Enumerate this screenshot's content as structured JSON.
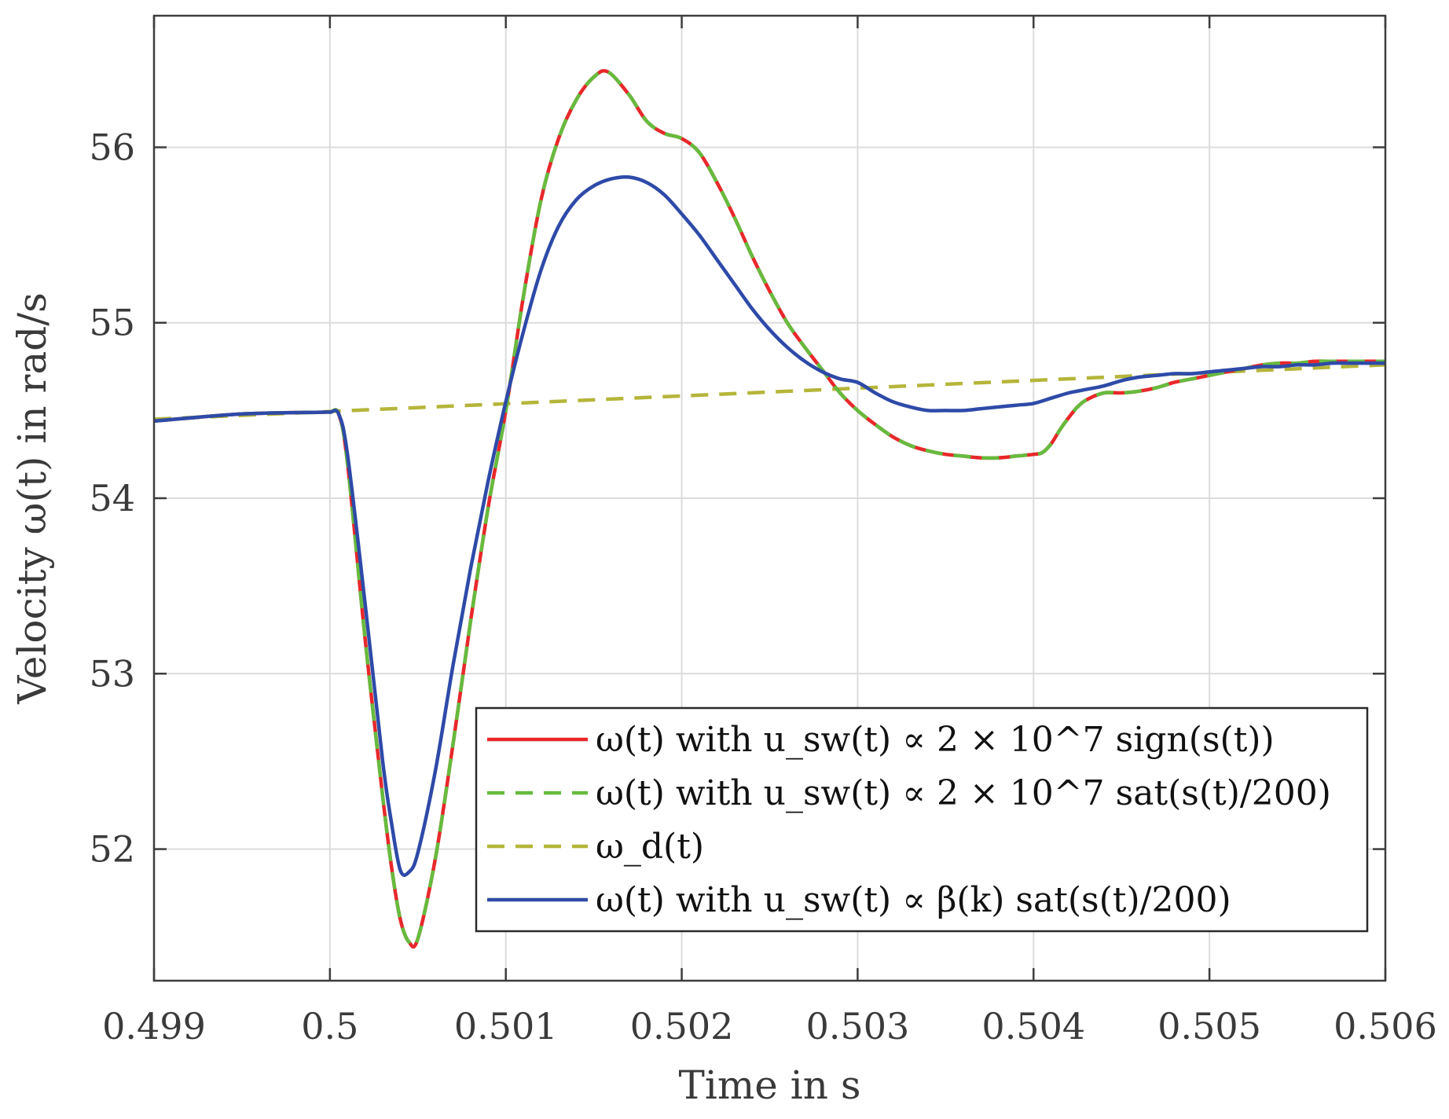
{
  "chart_data": {
    "type": "line",
    "xlabel": "Time in s",
    "ylabel": "Velocity ω(t) in rad/s",
    "xlim": [
      0.499,
      0.506
    ],
    "ylim": [
      51.25,
      56.75
    ],
    "xticks": [
      0.499,
      0.5,
      0.501,
      0.502,
      0.503,
      0.504,
      0.505,
      0.506
    ],
    "xtick_labels": [
      "0.499",
      "0.5",
      "0.501",
      "0.502",
      "0.503",
      "0.504",
      "0.505",
      "0.506"
    ],
    "yticks": [
      52,
      53,
      54,
      55,
      56
    ],
    "ytick_labels": [
      "52",
      "53",
      "54",
      "55",
      "56"
    ],
    "grid": true,
    "legend_position": "bottom-right",
    "series": [
      {
        "name": "ω(t) with u_sw(t) ∝ 2 × 10^7 sign(s(t))",
        "color": "#e8282b",
        "style": "solid",
        "x": [
          0.499,
          0.4995,
          0.49995,
          0.5,
          0.50005,
          0.5001,
          0.5002,
          0.5003,
          0.50035,
          0.5004,
          0.50045,
          0.5005,
          0.5006,
          0.5007,
          0.5008,
          0.5009,
          0.501,
          0.5011,
          0.5012,
          0.5013,
          0.5014,
          0.5015,
          0.50158,
          0.5017,
          0.5018,
          0.5019,
          0.502,
          0.5021,
          0.5022,
          0.5023,
          0.5024,
          0.5025,
          0.5026,
          0.5027,
          0.5028,
          0.5029,
          0.503,
          0.5031,
          0.5032,
          0.5033,
          0.5034,
          0.5035,
          0.5036,
          0.5037,
          0.5038,
          0.5039,
          0.504,
          0.50405,
          0.5041,
          0.50415,
          0.5042,
          0.50425,
          0.5043,
          0.5044,
          0.5045,
          0.5046,
          0.5047,
          0.5048,
          0.5049,
          0.505,
          0.5051,
          0.5052,
          0.5053,
          0.5054,
          0.5055,
          0.5056,
          0.5057,
          0.5058,
          0.5059,
          0.506
        ],
        "y": [
          54.44,
          54.48,
          54.49,
          54.49,
          54.48,
          54.2,
          53.2,
          52.3,
          51.9,
          51.6,
          51.47,
          51.49,
          51.95,
          52.6,
          53.3,
          53.95,
          54.5,
          55.15,
          55.7,
          56.05,
          56.27,
          56.4,
          56.43,
          56.3,
          56.15,
          56.08,
          56.05,
          55.97,
          55.8,
          55.6,
          55.38,
          55.18,
          55.0,
          54.86,
          54.73,
          54.6,
          54.5,
          54.42,
          54.35,
          54.3,
          54.27,
          54.25,
          54.24,
          54.23,
          54.23,
          54.24,
          54.25,
          54.26,
          54.31,
          54.39,
          54.46,
          54.52,
          54.56,
          54.6,
          54.6,
          54.61,
          54.63,
          54.66,
          54.68,
          54.7,
          54.72,
          54.74,
          54.76,
          54.77,
          54.77,
          54.78,
          54.78,
          54.78,
          54.78,
          54.78
        ]
      },
      {
        "name": "ω(t) with u_sw(t) ∝ 2 × 10^7 sat(s(t)/200)",
        "color": "#66bb3e",
        "style": "dashed",
        "x": [
          0.499,
          0.4995,
          0.49995,
          0.5,
          0.50005,
          0.5001,
          0.5002,
          0.5003,
          0.50035,
          0.5004,
          0.50045,
          0.5005,
          0.5006,
          0.5007,
          0.5008,
          0.5009,
          0.501,
          0.5011,
          0.5012,
          0.5013,
          0.5014,
          0.5015,
          0.50158,
          0.5017,
          0.5018,
          0.5019,
          0.502,
          0.5021,
          0.5022,
          0.5023,
          0.5024,
          0.5025,
          0.5026,
          0.5027,
          0.5028,
          0.5029,
          0.503,
          0.5031,
          0.5032,
          0.5033,
          0.5034,
          0.5035,
          0.5036,
          0.5037,
          0.5038,
          0.5039,
          0.504,
          0.50405,
          0.5041,
          0.50415,
          0.5042,
          0.50425,
          0.5043,
          0.5044,
          0.5045,
          0.5046,
          0.5047,
          0.5048,
          0.5049,
          0.505,
          0.5051,
          0.5052,
          0.5053,
          0.5054,
          0.5055,
          0.5056,
          0.5057,
          0.5058,
          0.5059,
          0.506
        ],
        "y": [
          54.44,
          54.48,
          54.49,
          54.49,
          54.48,
          54.2,
          53.2,
          52.3,
          51.9,
          51.6,
          51.47,
          51.49,
          51.95,
          52.6,
          53.3,
          53.95,
          54.5,
          55.15,
          55.7,
          56.05,
          56.27,
          56.4,
          56.43,
          56.3,
          56.15,
          56.08,
          56.05,
          55.97,
          55.8,
          55.6,
          55.38,
          55.18,
          55.0,
          54.86,
          54.73,
          54.6,
          54.5,
          54.42,
          54.35,
          54.3,
          54.27,
          54.25,
          54.24,
          54.23,
          54.23,
          54.24,
          54.25,
          54.26,
          54.31,
          54.39,
          54.46,
          54.52,
          54.56,
          54.6,
          54.6,
          54.61,
          54.63,
          54.66,
          54.68,
          54.7,
          54.72,
          54.74,
          54.76,
          54.77,
          54.77,
          54.78,
          54.78,
          54.78,
          54.78,
          54.78
        ]
      },
      {
        "name": "ω_d(t)",
        "color": "#b5b53a",
        "style": "dashed",
        "x": [
          0.499,
          0.506
        ],
        "y": [
          54.45,
          54.76
        ]
      },
      {
        "name": "ω(t) with u_sw(t) ∝ β(k) sat(s(t)/200)",
        "color": "#2e4aa8",
        "style": "solid",
        "x": [
          0.499,
          0.4995,
          0.49995,
          0.5,
          0.50005,
          0.5001,
          0.5002,
          0.5003,
          0.50035,
          0.5004,
          0.50045,
          0.5005,
          0.5006,
          0.5007,
          0.5008,
          0.5009,
          0.501,
          0.5011,
          0.5012,
          0.5013,
          0.5014,
          0.5015,
          0.5016,
          0.5017,
          0.5018,
          0.5019,
          0.502,
          0.5021,
          0.5022,
          0.5023,
          0.5024,
          0.5025,
          0.5026,
          0.5027,
          0.5028,
          0.5029,
          0.503,
          0.5031,
          0.5032,
          0.5033,
          0.5034,
          0.5035,
          0.5036,
          0.5037,
          0.5038,
          0.5039,
          0.504,
          0.5041,
          0.5042,
          0.5043,
          0.5044,
          0.5045,
          0.5046,
          0.5047,
          0.5048,
          0.5049,
          0.505,
          0.5051,
          0.5052,
          0.5053,
          0.5054,
          0.5055,
          0.5056,
          0.5057,
          0.5058,
          0.5059,
          0.506
        ],
        "y": [
          54.44,
          54.48,
          54.49,
          54.49,
          54.48,
          54.25,
          53.4,
          52.5,
          52.15,
          51.88,
          51.87,
          51.98,
          52.45,
          53.05,
          53.6,
          54.1,
          54.55,
          54.95,
          55.3,
          55.55,
          55.7,
          55.78,
          55.82,
          55.83,
          55.8,
          55.73,
          55.62,
          55.5,
          55.36,
          55.22,
          55.08,
          54.96,
          54.86,
          54.78,
          54.72,
          54.68,
          54.66,
          54.6,
          54.55,
          54.52,
          54.5,
          54.5,
          54.5,
          54.51,
          54.52,
          54.53,
          54.54,
          54.57,
          54.6,
          54.62,
          54.64,
          54.67,
          54.69,
          54.7,
          54.71,
          54.71,
          54.72,
          54.73,
          54.74,
          54.75,
          54.75,
          54.76,
          54.76,
          54.77,
          54.77,
          54.77,
          54.77
        ]
      }
    ]
  }
}
